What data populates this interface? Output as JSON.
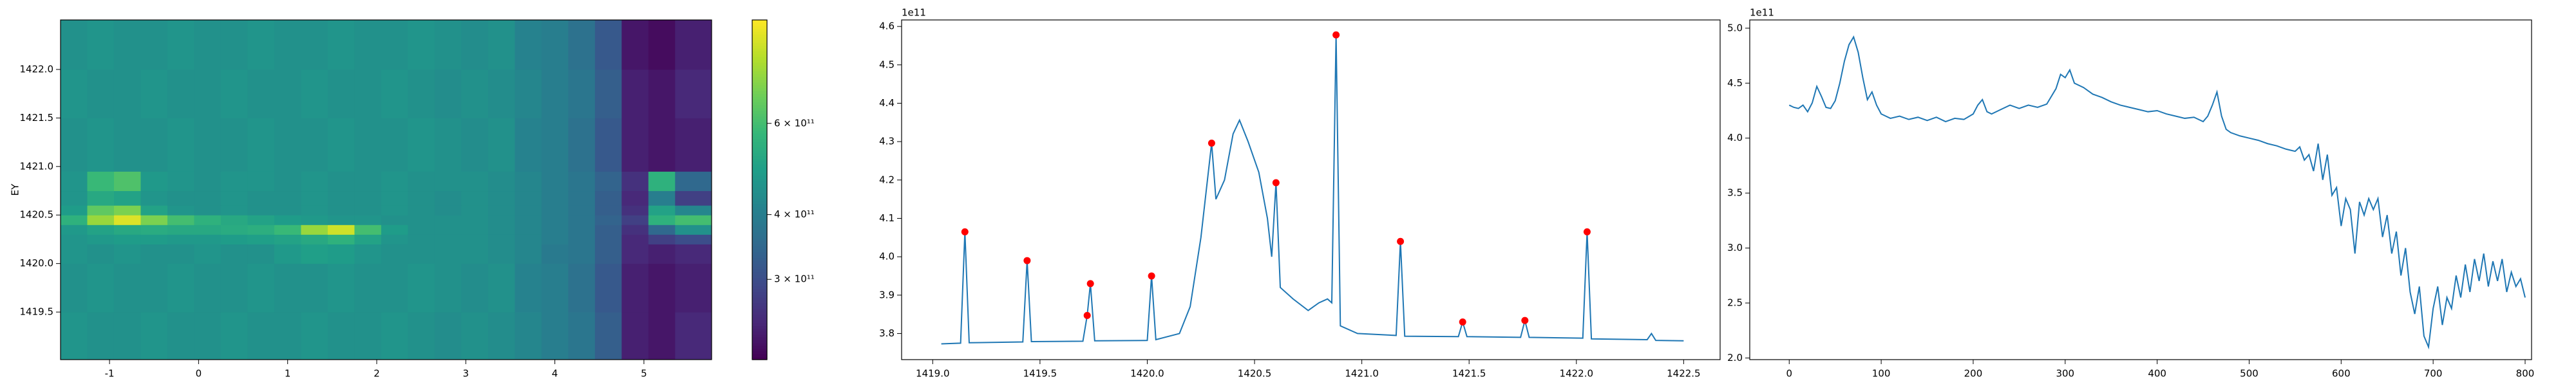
{
  "chart_data": [
    {
      "type": "heatmap",
      "y_label": "EY",
      "colormap": "viridis",
      "color_scale": "log",
      "xlim": [
        -1.55,
        5.76
      ],
      "ylim": [
        1419.01,
        1422.51
      ],
      "xticks": [
        -1,
        0,
        1,
        2,
        3,
        4,
        5
      ],
      "yticks": [
        1419.5,
        {
          "value": 1420,
          "label": "1420.0"
        },
        1420.5,
        {
          "value": 1421,
          "label": "1421.0"
        },
        1421.5,
        {
          "value": 1422,
          "label": "1422.0"
        }
      ],
      "clim": [
        210000000000.0,
        950000000000.0
      ],
      "cticks": [
        {
          "value": 300000000000.0,
          "label": "3 × 10¹¹"
        },
        {
          "value": 400000000000.0,
          "label": "4 × 10¹¹"
        },
        {
          "value": 600000000000.0,
          "label": "6 × 10¹¹"
        }
      ],
      "x_edges": [
        -1.55,
        -1.25,
        -0.95,
        -0.65,
        -0.35,
        -0.05,
        0.25,
        0.55,
        0.85,
        1.15,
        1.45,
        1.75,
        2.05,
        2.35,
        2.65,
        2.95,
        3.25,
        3.55,
        3.85,
        4.15,
        4.45,
        4.75,
        5.05,
        5.35,
        5.76
      ],
      "y_edges": [
        1419.01,
        1419.5,
        1420.0,
        1420.2,
        1420.3,
        1420.4,
        1420.5,
        1420.6,
        1420.75,
        1420.95,
        1421.5,
        1422.0,
        1422.51
      ],
      "z": [
        [
          460000000000.0,
          450000000000.0,
          450000000000.0,
          460000000000.0,
          450000000000.0,
          450000000000.0,
          460000000000.0,
          450000000000.0,
          450000000000.0,
          460000000000.0,
          450000000000.0,
          450000000000.0,
          460000000000.0,
          450000000000.0,
          440000000000.0,
          450000000000.0,
          440000000000.0,
          420000000000.0,
          400000000000.0,
          380000000000.0,
          330000000000.0,
          240000000000.0,
          230000000000.0,
          250000000000.0
        ],
        [
          450000000000.0,
          460000000000.0,
          450000000000.0,
          450000000000.0,
          460000000000.0,
          450000000000.0,
          450000000000.0,
          460000000000.0,
          450000000000.0,
          450000000000.0,
          460000000000.0,
          450000000000.0,
          450000000000.0,
          460000000000.0,
          450000000000.0,
          440000000000.0,
          450000000000.0,
          410000000000.0,
          400000000000.0,
          370000000000.0,
          320000000000.0,
          240000000000.0,
          230000000000.0,
          240000000000.0
        ],
        [
          460000000000.0,
          450000000000.0,
          460000000000.0,
          450000000000.0,
          450000000000.0,
          460000000000.0,
          450000000000.0,
          450000000000.0,
          470000000000.0,
          490000000000.0,
          480000000000.0,
          460000000000.0,
          450000000000.0,
          450000000000.0,
          450000000000.0,
          450000000000.0,
          440000000000.0,
          420000000000.0,
          390000000000.0,
          380000000000.0,
          330000000000.0,
          250000000000.0,
          240000000000.0,
          250000000000.0
        ],
        [
          460000000000.0,
          470000000000.0,
          480000000000.0,
          480000000000.0,
          470000000000.0,
          470000000000.0,
          480000000000.0,
          490000000000.0,
          500000000000.0,
          520000000000.0,
          550000000000.0,
          500000000000.0,
          460000000000.0,
          450000000000.0,
          450000000000.0,
          450000000000.0,
          440000000000.0,
          420000000000.0,
          400000000000.0,
          380000000000.0,
          330000000000.0,
          250000000000.0,
          280000000000.0,
          300000000000.0
        ],
        [
          470000000000.0,
          500000000000.0,
          520000000000.0,
          530000000000.0,
          520000000000.0,
          520000000000.0,
          530000000000.0,
          540000000000.0,
          580000000000.0,
          750000000000.0,
          850000000000.0,
          600000000000.0,
          480000000000.0,
          450000000000.0,
          450000000000.0,
          450000000000.0,
          440000000000.0,
          420000000000.0,
          400000000000.0,
          380000000000.0,
          330000000000.0,
          260000000000.0,
          350000000000.0,
          450000000000.0
        ],
        [
          550000000000.0,
          750000000000.0,
          880000000000.0,
          700000000000.0,
          600000000000.0,
          550000000000.0,
          520000000000.0,
          500000000000.0,
          480000000000.0,
          470000000000.0,
          460000000000.0,
          460000000000.0,
          450000000000.0,
          450000000000.0,
          450000000000.0,
          450000000000.0,
          440000000000.0,
          420000000000.0,
          400000000000.0,
          380000000000.0,
          340000000000.0,
          280000000000.0,
          550000000000.0,
          600000000000.0
        ],
        [
          480000000000.0,
          650000000000.0,
          700000000000.0,
          500000000000.0,
          460000000000.0,
          450000000000.0,
          460000000000.0,
          450000000000.0,
          450000000000.0,
          460000000000.0,
          450000000000.0,
          450000000000.0,
          460000000000.0,
          450000000000.0,
          440000000000.0,
          450000000000.0,
          440000000000.0,
          420000000000.0,
          400000000000.0,
          380000000000.0,
          330000000000.0,
          260000000000.0,
          500000000000.0,
          420000000000.0
        ],
        [
          460000000000.0,
          520000000000.0,
          500000000000.0,
          460000000000.0,
          450000000000.0,
          450000000000.0,
          460000000000.0,
          450000000000.0,
          450000000000.0,
          460000000000.0,
          450000000000.0,
          450000000000.0,
          460000000000.0,
          450000000000.0,
          440000000000.0,
          450000000000.0,
          440000000000.0,
          420000000000.0,
          400000000000.0,
          380000000000.0,
          330000000000.0,
          250000000000.0,
          400000000000.0,
          280000000000.0
        ],
        [
          460000000000.0,
          580000000000.0,
          620000000000.0,
          470000000000.0,
          460000000000.0,
          450000000000.0,
          460000000000.0,
          460000000000.0,
          450000000000.0,
          460000000000.0,
          450000000000.0,
          450000000000.0,
          460000000000.0,
          450000000000.0,
          450000000000.0,
          450000000000.0,
          440000000000.0,
          420000000000.0,
          400000000000.0,
          380000000000.0,
          340000000000.0,
          260000000000.0,
          550000000000.0,
          350000000000.0
        ],
        [
          450000000000.0,
          460000000000.0,
          450000000000.0,
          450000000000.0,
          460000000000.0,
          450000000000.0,
          450000000000.0,
          460000000000.0,
          450000000000.0,
          450000000000.0,
          460000000000.0,
          450000000000.0,
          450000000000.0,
          460000000000.0,
          450000000000.0,
          440000000000.0,
          450000000000.0,
          410000000000.0,
          400000000000.0,
          370000000000.0,
          320000000000.0,
          240000000000.0,
          230000000000.0,
          240000000000.0
        ],
        [
          460000000000.0,
          450000000000.0,
          450000000000.0,
          460000000000.0,
          450000000000.0,
          450000000000.0,
          460000000000.0,
          450000000000.0,
          450000000000.0,
          460000000000.0,
          450000000000.0,
          450000000000.0,
          460000000000.0,
          450000000000.0,
          440000000000.0,
          450000000000.0,
          440000000000.0,
          420000000000.0,
          400000000000.0,
          380000000000.0,
          330000000000.0,
          240000000000.0,
          230000000000.0,
          250000000000.0
        ],
        [
          450000000000.0,
          460000000000.0,
          450000000000.0,
          450000000000.0,
          460000000000.0,
          450000000000.0,
          450000000000.0,
          460000000000.0,
          450000000000.0,
          450000000000.0,
          460000000000.0,
          450000000000.0,
          450000000000.0,
          460000000000.0,
          450000000000.0,
          440000000000.0,
          450000000000.0,
          410000000000.0,
          400000000000.0,
          370000000000.0,
          320000000000.0,
          230000000000.0,
          220000000000.0,
          240000000000.0
        ]
      ]
    },
    {
      "type": "line",
      "offset_text": "1e11",
      "xlim": [
        1418.855,
        1422.67
      ],
      "ylim": [
        3.732,
        4.617
      ],
      "xticks": [
        {
          "value": 1419,
          "label": "1419.0"
        },
        1419.5,
        {
          "value": 1420,
          "label": "1420.0"
        },
        1420.5,
        {
          "value": 1421,
          "label": "1421.0"
        },
        1421.5,
        {
          "value": 1422,
          "label": "1422.0"
        },
        1422.5
      ],
      "yticks": [
        3.8,
        3.9,
        {
          "value": 4,
          "label": "4.0"
        },
        4.1,
        4.2,
        4.3,
        4.4,
        4.5,
        4.6
      ],
      "series": [
        {
          "type": "line",
          "color": "#1f77b4",
          "x": [
            1419.04,
            1419.13,
            1419.15,
            1419.17,
            1419.42,
            1419.44,
            1419.46,
            1419.7,
            1419.72,
            1419.735,
            1419.755,
            1420.0,
            1420.02,
            1420.04,
            1420.15,
            1420.2,
            1420.25,
            1420.3,
            1420.32,
            1420.36,
            1420.4,
            1420.43,
            1420.47,
            1420.52,
            1420.56,
            1420.58,
            1420.6,
            1420.62,
            1420.68,
            1420.75,
            1420.8,
            1420.84,
            1420.86,
            1420.88,
            1420.9,
            1420.98,
            1421.16,
            1421.18,
            1421.2,
            1421.45,
            1421.47,
            1421.49,
            1421.74,
            1421.76,
            1421.78,
            1422.03,
            1422.05,
            1422.07,
            1422.33,
            1422.35,
            1422.37,
            1422.5
          ],
          "values": [
            3.773,
            3.775,
            4.065,
            3.776,
            3.778,
            3.99,
            3.779,
            3.78,
            3.847,
            3.93,
            3.781,
            3.782,
            3.95,
            3.784,
            3.8,
            3.87,
            4.05,
            4.296,
            4.15,
            4.2,
            4.32,
            4.356,
            4.3,
            4.22,
            4.1,
            4.0,
            4.193,
            3.92,
            3.89,
            3.86,
            3.88,
            3.89,
            3.88,
            4.578,
            3.82,
            3.8,
            3.795,
            4.04,
            3.793,
            3.792,
            3.83,
            3.792,
            3.79,
            3.834,
            3.79,
            3.788,
            4.065,
            3.786,
            3.784,
            3.8,
            3.782,
            3.781
          ]
        },
        {
          "type": "scatter",
          "color": "#ff0000",
          "x": [
            1419.15,
            1419.44,
            1419.72,
            1419.735,
            1420.02,
            1420.3,
            1420.6,
            1420.88,
            1421.18,
            1421.47,
            1421.76,
            1422.05
          ],
          "values": [
            4.065,
            3.99,
            3.847,
            3.93,
            3.95,
            4.296,
            4.193,
            4.578,
            4.04,
            3.83,
            3.834,
            4.065
          ]
        }
      ]
    },
    {
      "type": "line",
      "offset_text": "1e11",
      "color": "#1f77b4",
      "xlim": [
        -42.9,
        807
      ],
      "ylim": [
        1.985,
        5.075
      ],
      "xticks": [
        0,
        100,
        200,
        300,
        400,
        500,
        600,
        700,
        800
      ],
      "yticks": [
        {
          "value": 2,
          "label": "2.0"
        },
        2.5,
        {
          "value": 3,
          "label": "3.0"
        },
        3.5,
        {
          "value": 4,
          "label": "4.0"
        },
        4.5,
        {
          "value": 5,
          "label": "5.0"
        }
      ],
      "x": [
        0,
        5,
        10,
        15,
        20,
        25,
        30,
        35,
        40,
        45,
        50,
        55,
        60,
        65,
        70,
        75,
        80,
        85,
        90,
        95,
        100,
        110,
        120,
        130,
        140,
        150,
        160,
        170,
        180,
        190,
        200,
        205,
        210,
        215,
        220,
        230,
        240,
        250,
        260,
        270,
        280,
        290,
        295,
        300,
        305,
        310,
        320,
        330,
        340,
        350,
        360,
        370,
        380,
        390,
        400,
        410,
        420,
        430,
        440,
        450,
        455,
        460,
        465,
        470,
        475,
        480,
        490,
        500,
        510,
        520,
        530,
        540,
        550,
        555,
        560,
        565,
        570,
        575,
        580,
        585,
        590,
        595,
        600,
        605,
        610,
        615,
        620,
        625,
        630,
        635,
        640,
        645,
        650,
        655,
        660,
        665,
        670,
        675,
        680,
        685,
        690,
        695,
        700,
        705,
        710,
        715,
        720,
        725,
        730,
        735,
        740,
        745,
        750,
        755,
        760,
        765,
        770,
        775,
        780,
        785,
        790,
        795,
        800
      ],
      "values": [
        4.3,
        4.28,
        4.27,
        4.3,
        4.24,
        4.32,
        4.47,
        4.38,
        4.28,
        4.27,
        4.34,
        4.5,
        4.7,
        4.85,
        4.92,
        4.78,
        4.55,
        4.35,
        4.42,
        4.3,
        4.22,
        4.18,
        4.2,
        4.17,
        4.19,
        4.16,
        4.19,
        4.15,
        4.18,
        4.17,
        4.22,
        4.3,
        4.35,
        4.24,
        4.22,
        4.26,
        4.3,
        4.27,
        4.3,
        4.28,
        4.31,
        4.45,
        4.58,
        4.55,
        4.62,
        4.5,
        4.46,
        4.4,
        4.37,
        4.33,
        4.3,
        4.28,
        4.26,
        4.24,
        4.25,
        4.22,
        4.2,
        4.18,
        4.19,
        4.15,
        4.2,
        4.3,
        4.42,
        4.2,
        4.08,
        4.05,
        4.02,
        4.0,
        3.98,
        3.95,
        3.93,
        3.9,
        3.88,
        3.92,
        3.8,
        3.85,
        3.7,
        3.95,
        3.62,
        3.85,
        3.48,
        3.55,
        3.2,
        3.45,
        3.35,
        2.95,
        3.42,
        3.3,
        3.45,
        3.35,
        3.45,
        3.1,
        3.3,
        2.95,
        3.15,
        2.75,
        3.0,
        2.6,
        2.4,
        2.65,
        2.2,
        2.1,
        2.45,
        2.65,
        2.3,
        2.55,
        2.45,
        2.75,
        2.55,
        2.85,
        2.6,
        2.9,
        2.7,
        2.95,
        2.65,
        2.88,
        2.7,
        2.9,
        2.6,
        2.78,
        2.65,
        2.72,
        2.55
      ]
    }
  ]
}
